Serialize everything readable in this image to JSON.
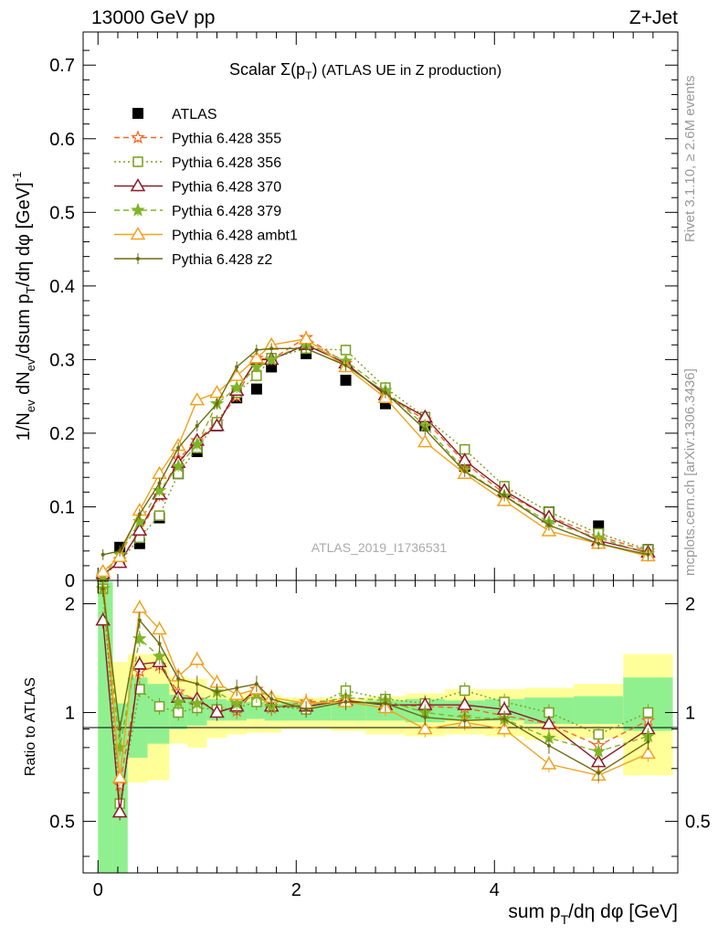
{
  "header": {
    "left": "13000 GeV pp",
    "right": "Z+Jet"
  },
  "side": {
    "rivet": "Rivet 3.1.10, ≥ 2.6M events",
    "mcplots": "mcplots.cern.ch [arXiv:1306.3436]"
  },
  "watermark": "ATLAS_2019_I1736531",
  "chart_data": [
    {
      "type": "line",
      "title": {
        "main": "Scalar Σ(p",
        "sub": "T",
        "close": ")",
        "suffix": " (ATLAS UE in Z production)"
      },
      "ylabel": "1/N_ev dN_ev/dsum p_T/dη dφ [GeV]^-1",
      "xlabel": "sum p_T/dη dφ [GeV]",
      "xlim": [
        -0.15,
        5.85
      ],
      "ylim": [
        0,
        0.745
      ],
      "yticks": [
        0,
        0.1,
        0.2,
        0.3,
        0.4,
        0.5,
        0.6,
        0.7
      ],
      "ytick_labels": [
        "0",
        "0.1",
        "0.2",
        "0.3",
        "0.4",
        "0.5",
        "0.6",
        "0.7"
      ],
      "legend_position": "top-left",
      "x": [
        0.05,
        0.22,
        0.42,
        0.62,
        0.81,
        1.0,
        1.2,
        1.4,
        1.6,
        1.75,
        2.1,
        2.5,
        2.9,
        3.3,
        3.7,
        4.1,
        4.55,
        5.05,
        5.55
      ],
      "series": [
        {
          "name": "ATLAS",
          "color": "#000000",
          "marker": "square-filled",
          "style": "none",
          "values": [
            0.005,
            0.045,
            0.05,
            0.085,
            0.145,
            0.175,
            0.21,
            0.248,
            0.26,
            0.29,
            0.308,
            0.272,
            0.24,
            0.21,
            0.155,
            0.12,
            0.093,
            0.074,
            0.042
          ]
        },
        {
          "name": "Pythia 6.428 355",
          "color": "#f26722",
          "marker": "star-open",
          "style": "dashed",
          "values": [
            0.006,
            0.028,
            0.065,
            0.115,
            0.165,
            0.19,
            0.215,
            0.25,
            0.302,
            0.3,
            0.33,
            0.295,
            0.252,
            0.218,
            0.16,
            0.118,
            0.087,
            0.06,
            0.04
          ]
        },
        {
          "name": "Pythia 6.428 356",
          "color": "#7a9e1e",
          "marker": "square-open",
          "style": "dotted",
          "values": [
            0.006,
            0.025,
            0.058,
            0.088,
            0.145,
            0.18,
            0.215,
            0.255,
            0.278,
            0.302,
            0.315,
            0.313,
            0.262,
            0.222,
            0.178,
            0.128,
            0.093,
            0.064,
            0.042
          ]
        },
        {
          "name": "Pythia 6.428 370",
          "color": "#8b1a2b",
          "marker": "triangle-open",
          "style": "solid",
          "values": [
            0.009,
            0.024,
            0.068,
            0.117,
            0.16,
            0.19,
            0.21,
            0.258,
            0.3,
            0.3,
            0.32,
            0.295,
            0.252,
            0.222,
            0.163,
            0.122,
            0.086,
            0.054,
            0.038
          ]
        },
        {
          "name": "Pythia 6.428 379",
          "color": "#7fb526",
          "marker": "star-filled",
          "style": "dashed",
          "values": [
            0.006,
            0.035,
            0.08,
            0.122,
            0.155,
            0.185,
            0.24,
            0.262,
            0.29,
            0.3,
            0.322,
            0.298,
            0.258,
            0.21,
            0.15,
            0.115,
            0.079,
            0.058,
            0.036
          ]
        },
        {
          "name": "Pythia 6.428 ambt1",
          "color": "#f2a21e",
          "marker": "triangle-open",
          "style": "solid",
          "values": [
            0.012,
            0.032,
            0.095,
            0.145,
            0.183,
            0.245,
            0.255,
            0.278,
            0.302,
            0.32,
            0.328,
            0.29,
            0.248,
            0.188,
            0.145,
            0.108,
            0.067,
            0.05,
            0.033
          ]
        },
        {
          "name": "Pythia 6.428 z2",
          "color": "#6b6b10",
          "marker": "dot",
          "style": "solid",
          "values": [
            0.035,
            0.04,
            0.09,
            0.132,
            0.18,
            0.21,
            0.24,
            0.29,
            0.313,
            0.315,
            0.315,
            0.292,
            0.255,
            0.205,
            0.148,
            0.115,
            0.075,
            0.05,
            0.035
          ]
        }
      ]
    },
    {
      "type": "line",
      "ylabel": "Ratio to ATLAS",
      "ylim": [
        0.36,
        2.32
      ],
      "scale": "log",
      "yticks": [
        0.5,
        1,
        2
      ],
      "ytick_labels": [
        "0.5",
        "1",
        "2"
      ],
      "xticks": [
        0,
        2,
        4
      ],
      "xtick_labels": [
        "0",
        "2",
        "4"
      ],
      "band_edges": [
        0.0,
        0.15,
        0.3,
        0.5,
        0.72,
        0.9,
        1.1,
        1.3,
        1.5,
        1.68,
        1.85,
        2.35,
        2.7,
        3.1,
        3.5,
        3.9,
        4.3,
        4.8,
        5.3,
        5.8
      ],
      "band_inner": [
        [
          0.35,
          2.3
        ],
        [
          0.35,
          1.06
        ],
        [
          0.75,
          1.25
        ],
        [
          0.82,
          1.2
        ],
        [
          0.9,
          1.12
        ],
        [
          0.92,
          1.1
        ],
        [
          0.95,
          1.09
        ],
        [
          0.95,
          1.08
        ],
        [
          0.96,
          1.07
        ],
        [
          0.95,
          1.06
        ],
        [
          0.95,
          1.07
        ],
        [
          0.95,
          1.07
        ],
        [
          0.95,
          1.08
        ],
        [
          0.94,
          1.09
        ],
        [
          0.95,
          1.08
        ],
        [
          0.95,
          1.09
        ],
        [
          0.93,
          1.1
        ],
        [
          0.93,
          1.11
        ],
        [
          0.89,
          1.25
        ]
      ],
      "band_outer": [
        [
          0.35,
          2.3
        ],
        [
          0.62,
          1.38
        ],
        [
          0.64,
          1.45
        ],
        [
          0.65,
          1.45
        ],
        [
          0.82,
          1.26
        ],
        [
          0.8,
          1.24
        ],
        [
          0.85,
          1.16
        ],
        [
          0.87,
          1.13
        ],
        [
          0.88,
          1.12
        ],
        [
          0.88,
          1.12
        ],
        [
          0.9,
          1.1
        ],
        [
          0.89,
          1.1
        ],
        [
          0.87,
          1.11
        ],
        [
          0.86,
          1.13
        ],
        [
          0.87,
          1.16
        ],
        [
          0.86,
          1.16
        ],
        [
          0.84,
          1.17
        ],
        [
          0.85,
          1.2
        ],
        [
          0.67,
          1.45
        ]
      ],
      "series": [
        {
          "name": "Pythia 6.428 355",
          "values": [
            2.2,
            0.63,
            1.3,
            1.35,
            1.14,
            1.08,
            1.02,
            1.01,
            1.16,
            1.03,
            1.07,
            1.08,
            1.05,
            1.04,
            1.03,
            0.98,
            0.93,
            0.81,
            0.95
          ]
        },
        {
          "name": "Pythia 6.428 356",
          "values": [
            2.2,
            0.56,
            1.16,
            1.04,
            1.0,
            1.03,
            1.02,
            1.03,
            1.07,
            1.04,
            1.02,
            1.15,
            1.09,
            1.06,
            1.15,
            1.07,
            1.0,
            0.87,
            1.0
          ]
        },
        {
          "name": "Pythia 6.428 370",
          "values": [
            1.8,
            0.53,
            1.36,
            1.38,
            1.1,
            1.09,
            1.0,
            1.04,
            1.16,
            1.04,
            1.04,
            1.08,
            1.05,
            1.05,
            1.05,
            1.02,
            0.93,
            0.73,
            0.9
          ]
        },
        {
          "name": "Pythia 6.428 379",
          "values": [
            2.2,
            0.8,
            1.6,
            1.43,
            1.07,
            1.06,
            1.14,
            1.06,
            1.12,
            1.04,
            1.05,
            1.1,
            1.08,
            1.0,
            0.97,
            0.96,
            0.85,
            0.78,
            0.86
          ]
        },
        {
          "name": "Pythia 6.428 ambt1",
          "values": [
            2.4,
            0.66,
            1.95,
            1.7,
            1.26,
            1.4,
            1.21,
            1.12,
            1.16,
            1.1,
            1.06,
            1.07,
            1.03,
            0.9,
            0.94,
            0.9,
            0.72,
            0.67,
            0.77
          ]
        },
        {
          "name": "Pythia 6.428 z2",
          "values": [
            2.2,
            0.9,
            1.8,
            1.55,
            1.24,
            1.2,
            1.14,
            1.17,
            1.2,
            1.09,
            1.02,
            1.07,
            1.06,
            0.97,
            0.95,
            0.96,
            0.81,
            0.68,
            0.83
          ]
        }
      ]
    }
  ]
}
